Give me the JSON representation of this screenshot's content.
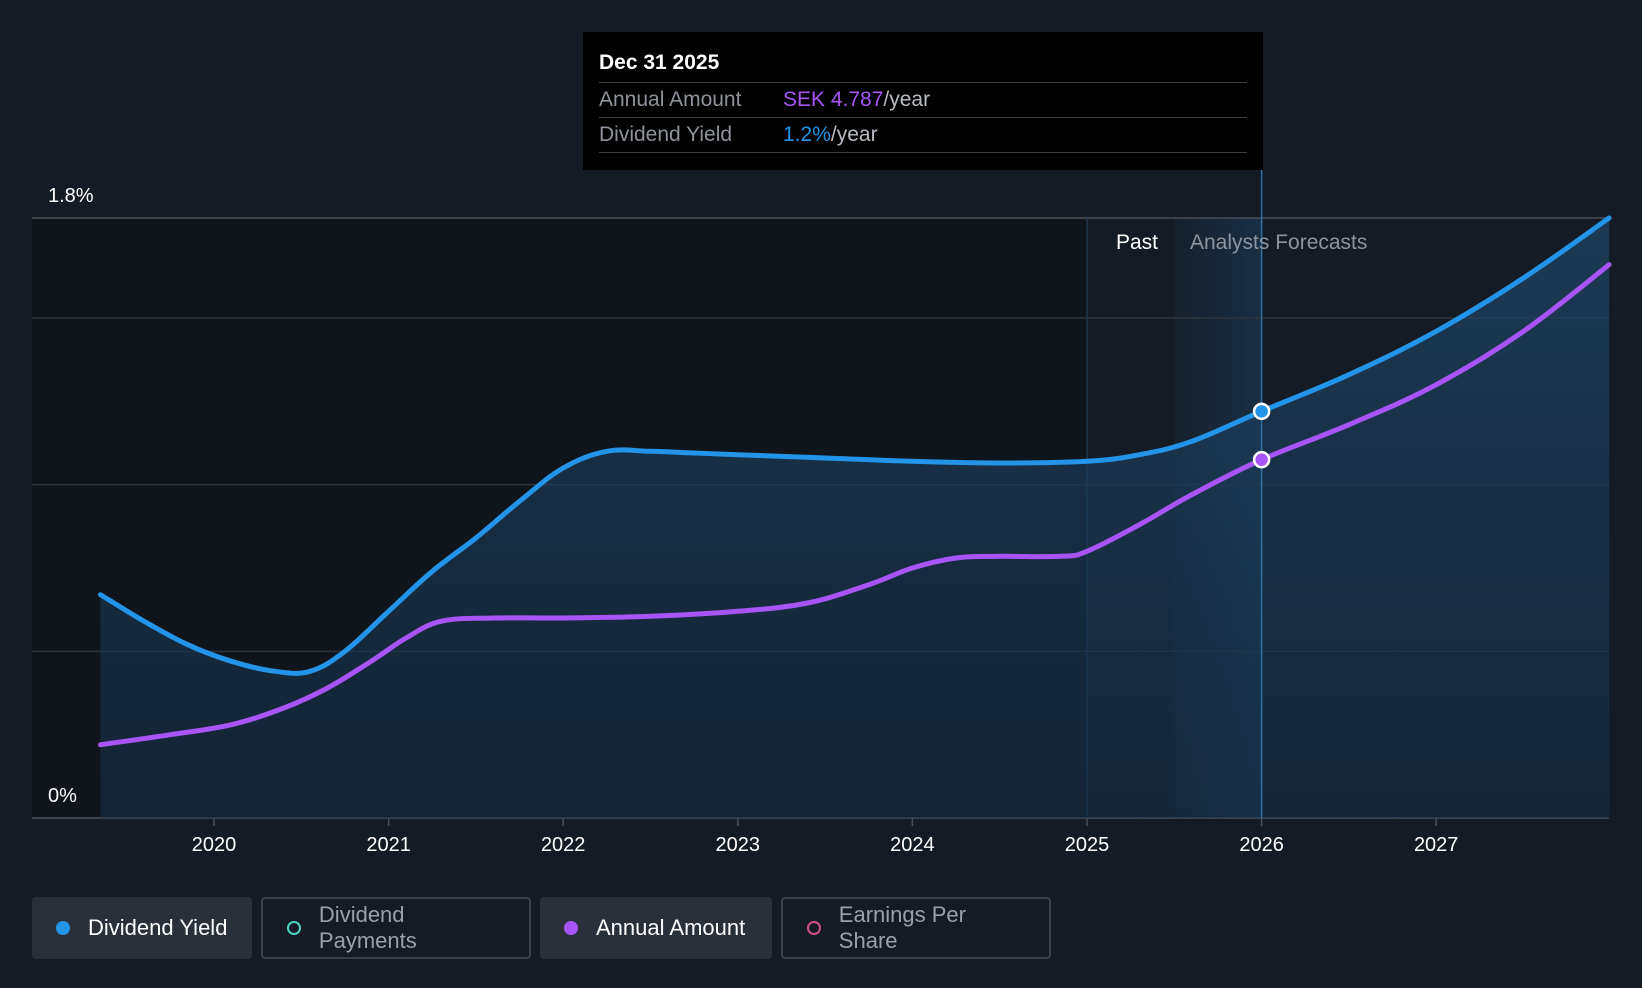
{
  "tooltip": {
    "date": "Dec 31 2025",
    "annual_amount_label": "Annual Amount",
    "annual_amount_value": "SEK 4.787",
    "annual_amount_unit": "/year",
    "dividend_yield_label": "Dividend Yield",
    "dividend_yield_value": "1.2%",
    "dividend_yield_unit": "/year"
  },
  "regions": {
    "past_label": "Past",
    "forecast_label": "Analysts Forecasts"
  },
  "legend": [
    {
      "label": "Dividend Yield",
      "active": true,
      "color": "#2394e8"
    },
    {
      "label": "Dividend Payments",
      "active": false,
      "color": "#4fd1c5"
    },
    {
      "label": "Annual Amount",
      "active": true,
      "color": "#a855f7"
    },
    {
      "label": "Earnings Per Share",
      "active": false,
      "color": "#d04f8a"
    }
  ],
  "colors": {
    "background": "#151b24",
    "yield": "#2394e8",
    "annual_amount": "#a855f7",
    "grid": "#2e343d",
    "tooltip_bg": "#000000"
  },
  "chart_data": {
    "type": "line",
    "title": "",
    "xlabel": "",
    "ylabel": "",
    "ylim": [
      0,
      1.8
    ],
    "xlim": [
      2019.35,
      2028.0
    ],
    "y_tick_labels": [
      "0%",
      "1.8%"
    ],
    "x_ticks": [
      2020,
      2021,
      2022,
      2023,
      2024,
      2025,
      2026,
      2027
    ],
    "grid": true,
    "past_region_start": 2025.0,
    "forecast_region_start": 2025.5,
    "highlight_x": 2026.0,
    "series": [
      {
        "name": "Dividend Yield",
        "points": [
          [
            2019.35,
            0.67
          ],
          [
            2019.6,
            0.59
          ],
          [
            2019.85,
            0.52
          ],
          [
            2020.1,
            0.47
          ],
          [
            2020.35,
            0.44
          ],
          [
            2020.55,
            0.44
          ],
          [
            2020.75,
            0.5
          ],
          [
            2021.0,
            0.62
          ],
          [
            2021.25,
            0.74
          ],
          [
            2021.5,
            0.84
          ],
          [
            2021.75,
            0.95
          ],
          [
            2022.0,
            1.05
          ],
          [
            2022.25,
            1.1
          ],
          [
            2022.5,
            1.1
          ],
          [
            2022.75,
            1.095
          ],
          [
            2023.0,
            1.09
          ],
          [
            2023.5,
            1.08
          ],
          [
            2024.0,
            1.07
          ],
          [
            2024.5,
            1.065
          ],
          [
            2025.0,
            1.07
          ],
          [
            2025.3,
            1.09
          ],
          [
            2025.6,
            1.13
          ],
          [
            2026.0,
            1.22
          ],
          [
            2026.5,
            1.33
          ],
          [
            2027.0,
            1.46
          ],
          [
            2027.5,
            1.62
          ],
          [
            2027.99,
            1.8
          ]
        ]
      },
      {
        "name": "Annual Amount",
        "points": [
          [
            2019.35,
            0.22
          ],
          [
            2019.75,
            0.25
          ],
          [
            2020.1,
            0.28
          ],
          [
            2020.4,
            0.33
          ],
          [
            2020.65,
            0.39
          ],
          [
            2020.9,
            0.47
          ],
          [
            2021.1,
            0.54
          ],
          [
            2021.3,
            0.59
          ],
          [
            2021.6,
            0.6
          ],
          [
            2022.0,
            0.6
          ],
          [
            2022.5,
            0.605
          ],
          [
            2023.0,
            0.62
          ],
          [
            2023.4,
            0.645
          ],
          [
            2023.75,
            0.7
          ],
          [
            2024.0,
            0.75
          ],
          [
            2024.25,
            0.78
          ],
          [
            2024.5,
            0.785
          ],
          [
            2024.85,
            0.785
          ],
          [
            2025.0,
            0.8
          ],
          [
            2025.3,
            0.88
          ],
          [
            2025.6,
            0.97
          ],
          [
            2026.0,
            1.075
          ],
          [
            2026.5,
            1.18
          ],
          [
            2027.0,
            1.3
          ],
          [
            2027.5,
            1.46
          ],
          [
            2027.99,
            1.66
          ]
        ]
      }
    ]
  }
}
